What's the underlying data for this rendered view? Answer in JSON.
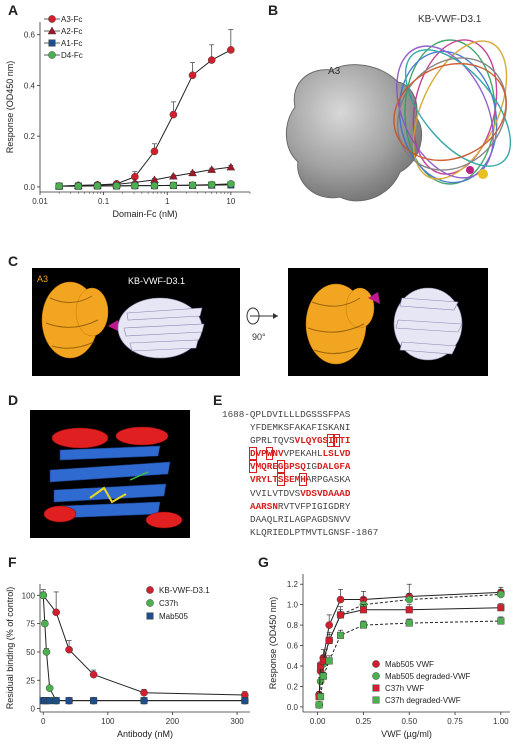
{
  "panels": [
    "A",
    "B",
    "C",
    "D",
    "E",
    "F",
    "G"
  ],
  "panelB": {
    "label_a3": "A3",
    "label_kb": "KB-VWF-D3.1"
  },
  "panelC": {
    "label_a3": "A3",
    "label_kb": "KB-VWF-D3.1",
    "rotation": "90°"
  },
  "panelE": {
    "start": "1688-",
    "end": "-1867",
    "lines": [
      [
        {
          "t": "QPLDVILLLDGSSSFPAS",
          "c": "n"
        }
      ],
      [
        {
          "t": "YFDEMKSFAKAFISKAN",
          "c": "n"
        },
        {
          "t": "I",
          "c": "n"
        }
      ],
      [
        {
          "t": "GPRLTQVS",
          "c": "n"
        },
        {
          "t": "VLQYGS",
          "c": "h"
        },
        {
          "t": "I",
          "c": "b"
        },
        {
          "t": "T",
          "c": "b"
        },
        {
          "t": "TI",
          "c": "h"
        }
      ],
      [
        {
          "t": "D",
          "c": "b"
        },
        {
          "t": "VP",
          "c": "h"
        },
        {
          "t": "W",
          "c": "b"
        },
        {
          "t": "NV",
          "c": "h"
        },
        {
          "t": "VPEKAHL",
          "c": "n"
        },
        {
          "t": "LSLVD",
          "c": "h"
        }
      ],
      [
        {
          "t": "V",
          "c": "b"
        },
        {
          "t": "MQRE",
          "c": "h"
        },
        {
          "t": "G",
          "c": "b"
        },
        {
          "t": "GPSQ",
          "c": "h"
        },
        {
          "t": "IG",
          "c": "n"
        },
        {
          "t": "DALGFA",
          "c": "h"
        }
      ],
      [
        {
          "t": "VRYLT",
          "c": "h"
        },
        {
          "t": "S",
          "c": "b"
        },
        {
          "t": "SEM",
          "c": "h"
        },
        {
          "t": "H",
          "c": "b"
        },
        {
          "t": "ARPGASKA",
          "c": "n"
        }
      ],
      [
        {
          "t": "VVILVTDVS",
          "c": "n"
        },
        {
          "t": "VDSVDAAAD",
          "c": "h"
        }
      ],
      [
        {
          "t": "AARSN",
          "c": "h"
        },
        {
          "t": "RVTVFPIGIGDRY",
          "c": "n"
        }
      ],
      [
        {
          "t": "DAAQLRILAGPAGDSNVV",
          "c": "n"
        }
      ],
      [
        {
          "t": "KLQRIEDLPTMVTLGNSF",
          "c": "n"
        }
      ]
    ]
  },
  "chart_data": [
    {
      "panel": "A",
      "type": "line",
      "xlabel": "Domain-Fc (nM)",
      "ylabel": "Response (OD450 nm)",
      "xscale": "log",
      "xlim": [
        0.01,
        20
      ],
      "xticks": [
        0.01,
        0.1,
        1,
        10
      ],
      "xtick_labels": [
        "0.01",
        "0.1",
        "1",
        "10"
      ],
      "ylim": [
        -0.02,
        0.65
      ],
      "yticks": [
        0.0,
        0.2,
        0.4,
        0.6
      ],
      "ytick_labels": [
        "0.0",
        "0.2",
        "0.4",
        "0.6"
      ],
      "legend_position": "top-left",
      "series": [
        {
          "name": "A3-Fc",
          "color": "#d0202e",
          "marker": "circle",
          "x": [
            0.02,
            0.04,
            0.08,
            0.16,
            0.31,
            0.63,
            1.25,
            2.5,
            5,
            10
          ],
          "y": [
            0.003,
            0.006,
            0.008,
            0.012,
            0.04,
            0.14,
            0.285,
            0.44,
            0.5,
            0.54
          ],
          "err": [
            0.003,
            0.004,
            0.004,
            0.006,
            0.02,
            0.03,
            0.05,
            0.05,
            0.06,
            0.08
          ]
        },
        {
          "name": "A2-Fc",
          "color": "#a01828",
          "marker": "triangle",
          "x": [
            0.02,
            0.04,
            0.08,
            0.16,
            0.31,
            0.63,
            1.25,
            2.5,
            5,
            10
          ],
          "y": [
            0.003,
            0.005,
            0.007,
            0.01,
            0.018,
            0.028,
            0.042,
            0.055,
            0.068,
            0.078
          ],
          "err": [
            0.002,
            0.002,
            0.002,
            0.003,
            0.004,
            0.005,
            0.005,
            0.006,
            0.006,
            0.007
          ]
        },
        {
          "name": "A1-Fc",
          "color": "#1d4e89",
          "marker": "square",
          "x": [
            0.02,
            0.04,
            0.08,
            0.16,
            0.31,
            0.63,
            1.25,
            2.5,
            5,
            10
          ],
          "y": [
            0.003,
            0.003,
            0.004,
            0.004,
            0.005,
            0.005,
            0.006,
            0.006,
            0.007,
            0.008
          ],
          "err": [
            0.002,
            0.002,
            0.002,
            0.002,
            0.002,
            0.002,
            0.002,
            0.002,
            0.002,
            0.002
          ]
        },
        {
          "name": "D4-Fc",
          "color": "#4caf50",
          "marker": "circle",
          "x": [
            0.02,
            0.04,
            0.08,
            0.16,
            0.31,
            0.63,
            1.25,
            2.5,
            5,
            10
          ],
          "y": [
            0.003,
            0.003,
            0.004,
            0.004,
            0.005,
            0.005,
            0.006,
            0.007,
            0.009,
            0.012
          ],
          "err": [
            0.002,
            0.002,
            0.002,
            0.002,
            0.002,
            0.002,
            0.002,
            0.002,
            0.002,
            0.002
          ]
        }
      ]
    },
    {
      "panel": "F",
      "type": "line",
      "xlabel": "Antibody (nM)",
      "ylabel": "Residual binding (% of control)",
      "xlim": [
        -5,
        320
      ],
      "xticks": [
        0,
        100,
        200,
        300
      ],
      "xtick_labels": [
        "0",
        "100",
        "200",
        "300"
      ],
      "ylim": [
        -3,
        110
      ],
      "yticks": [
        0,
        25,
        50,
        75,
        100
      ],
      "ytick_labels": [
        "0",
        "25",
        "50",
        "75",
        "100"
      ],
      "legend_position": "top-right",
      "series": [
        {
          "name": "KB-VWF-D3.1",
          "color": "#d0202e",
          "marker": "circle",
          "x": [
            0,
            20,
            40,
            78,
            156,
            312
          ],
          "y": [
            100,
            85,
            52,
            30,
            14,
            12
          ],
          "err": [
            5,
            18,
            8,
            4,
            3,
            3
          ]
        },
        {
          "name": "C37h",
          "color": "#4caf50",
          "marker": "circle",
          "x": [
            0,
            2.5,
            5,
            10,
            20,
            40,
            78,
            156,
            312
          ],
          "y": [
            100,
            75,
            50,
            18,
            7,
            7,
            7,
            7,
            7
          ],
          "err": [
            3,
            3,
            3,
            2,
            2,
            2,
            2,
            2,
            2
          ]
        },
        {
          "name": "Mab505",
          "color": "#1d4e89",
          "marker": "square",
          "x": [
            0,
            2.5,
            5,
            10,
            20,
            40,
            78,
            156,
            312
          ],
          "y": [
            7,
            7,
            7,
            7,
            7,
            7,
            7,
            7,
            7
          ],
          "err": [
            1,
            1,
            1,
            1,
            1,
            1,
            1,
            1,
            1
          ]
        }
      ]
    },
    {
      "panel": "G",
      "type": "line",
      "xlabel": "VWF (µg/ml)",
      "ylabel": "Response (OD450 nm)",
      "xlim": [
        -0.08,
        1.05
      ],
      "xticks": [
        0.0,
        0.25,
        0.5,
        0.75,
        1.0
      ],
      "xtick_labels": [
        "0.00",
        "0.25",
        "0.50",
        "0.75",
        "1.00"
      ],
      "ylim": [
        -0.05,
        1.3
      ],
      "yticks": [
        0.0,
        0.2,
        0.4,
        0.6,
        0.8,
        1.0,
        1.2
      ],
      "ytick_labels": [
        "0.0",
        "0.2",
        "0.4",
        "0.6",
        "0.8",
        "1.0",
        "1.2"
      ],
      "legend_position": "bottom-right",
      "series": [
        {
          "name": "Mab505 VWF",
          "color": "#d0202e",
          "marker": "circle",
          "x": [
            0.008,
            0.016,
            0.031,
            0.063,
            0.125,
            0.25,
            0.5,
            1.0
          ],
          "y": [
            0.12,
            0.35,
            0.48,
            0.8,
            1.05,
            1.05,
            1.08,
            1.12
          ],
          "err": [
            0.03,
            0.05,
            0.08,
            0.1,
            0.1,
            0.08,
            0.12,
            0.05
          ]
        },
        {
          "name": "Mab505 degraded-VWF",
          "color": "#4caf50",
          "marker": "circle",
          "x": [
            0.008,
            0.016,
            0.031,
            0.063,
            0.125,
            0.25,
            0.5,
            1.0
          ],
          "y": [
            0.02,
            0.25,
            0.42,
            0.65,
            0.9,
            1.0,
            1.05,
            1.1
          ],
          "err": [
            0.02,
            0.04,
            0.06,
            0.08,
            0.08,
            0.07,
            0.06,
            0.05
          ]
        },
        {
          "name": "C37h VWF",
          "color": "#d0202e",
          "marker": "square",
          "x": [
            0.008,
            0.016,
            0.031,
            0.063,
            0.125,
            0.25,
            0.5,
            1.0
          ],
          "y": [
            0.1,
            0.4,
            0.45,
            0.65,
            0.9,
            0.95,
            0.95,
            0.97
          ],
          "err": [
            0.03,
            0.04,
            0.05,
            0.06,
            0.05,
            0.05,
            0.05,
            0.04
          ]
        },
        {
          "name": "C37h degraded-VWF",
          "color": "#4caf50",
          "marker": "square",
          "x": [
            0.008,
            0.016,
            0.031,
            0.063,
            0.125,
            0.25,
            0.5,
            1.0
          ],
          "y": [
            0.02,
            0.1,
            0.3,
            0.45,
            0.7,
            0.8,
            0.82,
            0.84
          ],
          "err": [
            0.02,
            0.03,
            0.04,
            0.05,
            0.05,
            0.04,
            0.04,
            0.04
          ]
        }
      ]
    }
  ]
}
